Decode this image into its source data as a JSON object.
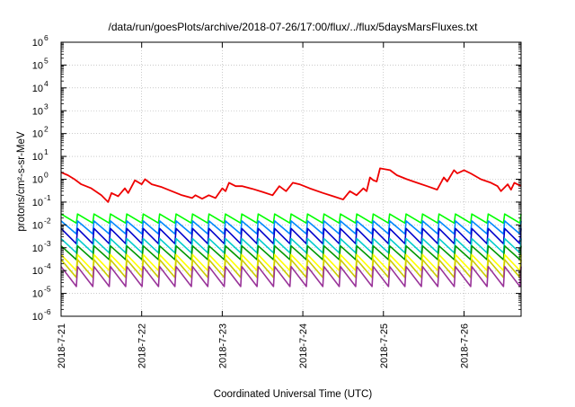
{
  "chart_data": {
    "type": "line",
    "title": "/data/run/goesPlots/archive/2018-07-26/17:00/flux/../flux/5daysMarsFluxes.txt",
    "xlabel": "Coordinated Universal Time (UTC)",
    "ylabel": "protons/cm²-s-sr-MeV",
    "y_scale": "log",
    "ylim": [
      1e-06,
      1000000.0
    ],
    "xlim": [
      "2018-07-21",
      "2018-07-26 17:00"
    ],
    "x_ticks": [
      "2018-7-21",
      "2018-7-22",
      "2018-7-23",
      "2018-7-24",
      "2018-7-25",
      "2018-7-26"
    ],
    "y_ticks": [
      {
        "base": "10",
        "exp": "-6"
      },
      {
        "base": "10",
        "exp": "-5"
      },
      {
        "base": "10",
        "exp": "-4"
      },
      {
        "base": "10",
        "exp": "-3"
      },
      {
        "base": "10",
        "exp": "-2"
      },
      {
        "base": "10",
        "exp": "-1"
      },
      {
        "base": "10",
        "exp": "0"
      },
      {
        "base": "10",
        "exp": "1"
      },
      {
        "base": "10",
        "exp": "2"
      },
      {
        "base": "10",
        "exp": "3"
      },
      {
        "base": "10",
        "exp": "4"
      },
      {
        "base": "10",
        "exp": "5"
      },
      {
        "base": "10",
        "exp": "6"
      }
    ],
    "grid": true,
    "legend": "none",
    "series": [
      {
        "color": "#ee0000",
        "points": [
          [
            "2018-07-21 00:00",
            2.0
          ],
          [
            "2018-07-21 02:00",
            1.5
          ],
          [
            "2018-07-21 04:00",
            1.0
          ],
          [
            "2018-07-21 06:00",
            0.6
          ],
          [
            "2018-07-21 09:00",
            0.4
          ],
          [
            "2018-07-21 12:00",
            0.2
          ],
          [
            "2018-07-21 14:00",
            0.1
          ],
          [
            "2018-07-21 15:00",
            0.25
          ],
          [
            "2018-07-21 17:00",
            0.18
          ],
          [
            "2018-07-21 19:00",
            0.4
          ],
          [
            "2018-07-21 20:00",
            0.25
          ],
          [
            "2018-07-21 22:00",
            0.9
          ],
          [
            "2018-07-22 00:00",
            0.6
          ],
          [
            "2018-07-22 01:00",
            1.0
          ],
          [
            "2018-07-22 03:00",
            0.6
          ],
          [
            "2018-07-22 06:00",
            0.45
          ],
          [
            "2018-07-22 09:00",
            0.3
          ],
          [
            "2018-07-22 12:00",
            0.2
          ],
          [
            "2018-07-22 15:00",
            0.15
          ],
          [
            "2018-07-22 16:00",
            0.2
          ],
          [
            "2018-07-22 18:00",
            0.14
          ],
          [
            "2018-07-22 20:00",
            0.2
          ],
          [
            "2018-07-22 22:00",
            0.15
          ],
          [
            "2018-07-23 00:00",
            0.4
          ],
          [
            "2018-07-23 01:00",
            0.3
          ],
          [
            "2018-07-23 02:00",
            0.7
          ],
          [
            "2018-07-23 04:00",
            0.5
          ],
          [
            "2018-07-23 06:00",
            0.5
          ],
          [
            "2018-07-23 09:00",
            0.38
          ],
          [
            "2018-07-23 12:00",
            0.28
          ],
          [
            "2018-07-23 15:00",
            0.2
          ],
          [
            "2018-07-23 17:00",
            0.5
          ],
          [
            "2018-07-23 19:00",
            0.3
          ],
          [
            "2018-07-23 21:00",
            0.7
          ],
          [
            "2018-07-23 23:00",
            0.6
          ],
          [
            "2018-07-24 02:00",
            0.4
          ],
          [
            "2018-07-24 06:00",
            0.25
          ],
          [
            "2018-07-24 09:00",
            0.18
          ],
          [
            "2018-07-24 12:00",
            0.13
          ],
          [
            "2018-07-24 14:00",
            0.3
          ],
          [
            "2018-07-24 16:00",
            0.2
          ],
          [
            "2018-07-24 18:00",
            0.4
          ],
          [
            "2018-07-24 19:00",
            0.3
          ],
          [
            "2018-07-24 20:00",
            1.2
          ],
          [
            "2018-07-24 21:00",
            0.9
          ],
          [
            "2018-07-24 22:00",
            0.8
          ],
          [
            "2018-07-24 23:00",
            3.0
          ],
          [
            "2018-07-25 02:00",
            2.5
          ],
          [
            "2018-07-25 04:00",
            1.5
          ],
          [
            "2018-07-25 07:00",
            1.0
          ],
          [
            "2018-07-25 10:00",
            0.7
          ],
          [
            "2018-07-25 13:00",
            0.5
          ],
          [
            "2018-07-25 16:00",
            0.35
          ],
          [
            "2018-07-25 18:00",
            1.2
          ],
          [
            "2018-07-25 19:00",
            0.8
          ],
          [
            "2018-07-25 21:00",
            2.5
          ],
          [
            "2018-07-25 22:00",
            1.8
          ],
          [
            "2018-07-26 00:00",
            2.5
          ],
          [
            "2018-07-26 02:00",
            1.8
          ],
          [
            "2018-07-26 05:00",
            1.0
          ],
          [
            "2018-07-26 08:00",
            0.7
          ],
          [
            "2018-07-26 10:00",
            0.5
          ],
          [
            "2018-07-26 11:00",
            0.3
          ],
          [
            "2018-07-26 13:00",
            0.6
          ],
          [
            "2018-07-26 14:00",
            0.35
          ],
          [
            "2018-07-26 15:00",
            0.7
          ],
          [
            "2018-07-26 17:00",
            0.5
          ]
        ]
      },
      {
        "color": "#00ff00",
        "wave": {
          "high": 0.03,
          "low": 0.012,
          "cycles": 28
        }
      },
      {
        "color": "#0088ff",
        "wave": {
          "high": 0.015,
          "low": 0.004,
          "cycles": 28
        }
      },
      {
        "color": "#0000cc",
        "wave": {
          "high": 0.007,
          "low": 0.0015,
          "cycles": 28
        }
      },
      {
        "color": "#00cccc",
        "wave": {
          "high": 0.0025,
          "low": 0.0006,
          "cycles": 28
        }
      },
      {
        "color": "#009900",
        "wave": {
          "high": 0.0012,
          "low": 0.0003,
          "cycles": 28
        }
      },
      {
        "color": "#ffff00",
        "wave": {
          "high": 0.0005,
          "low": 0.0001,
          "cycles": 28
        }
      },
      {
        "color": "#cccc00",
        "wave": {
          "high": 0.0003,
          "low": 5e-05,
          "cycles": 28
        }
      },
      {
        "color": "#993399",
        "wave": {
          "high": 0.00015,
          "low": 2e-05,
          "cycles": 28
        }
      }
    ]
  }
}
